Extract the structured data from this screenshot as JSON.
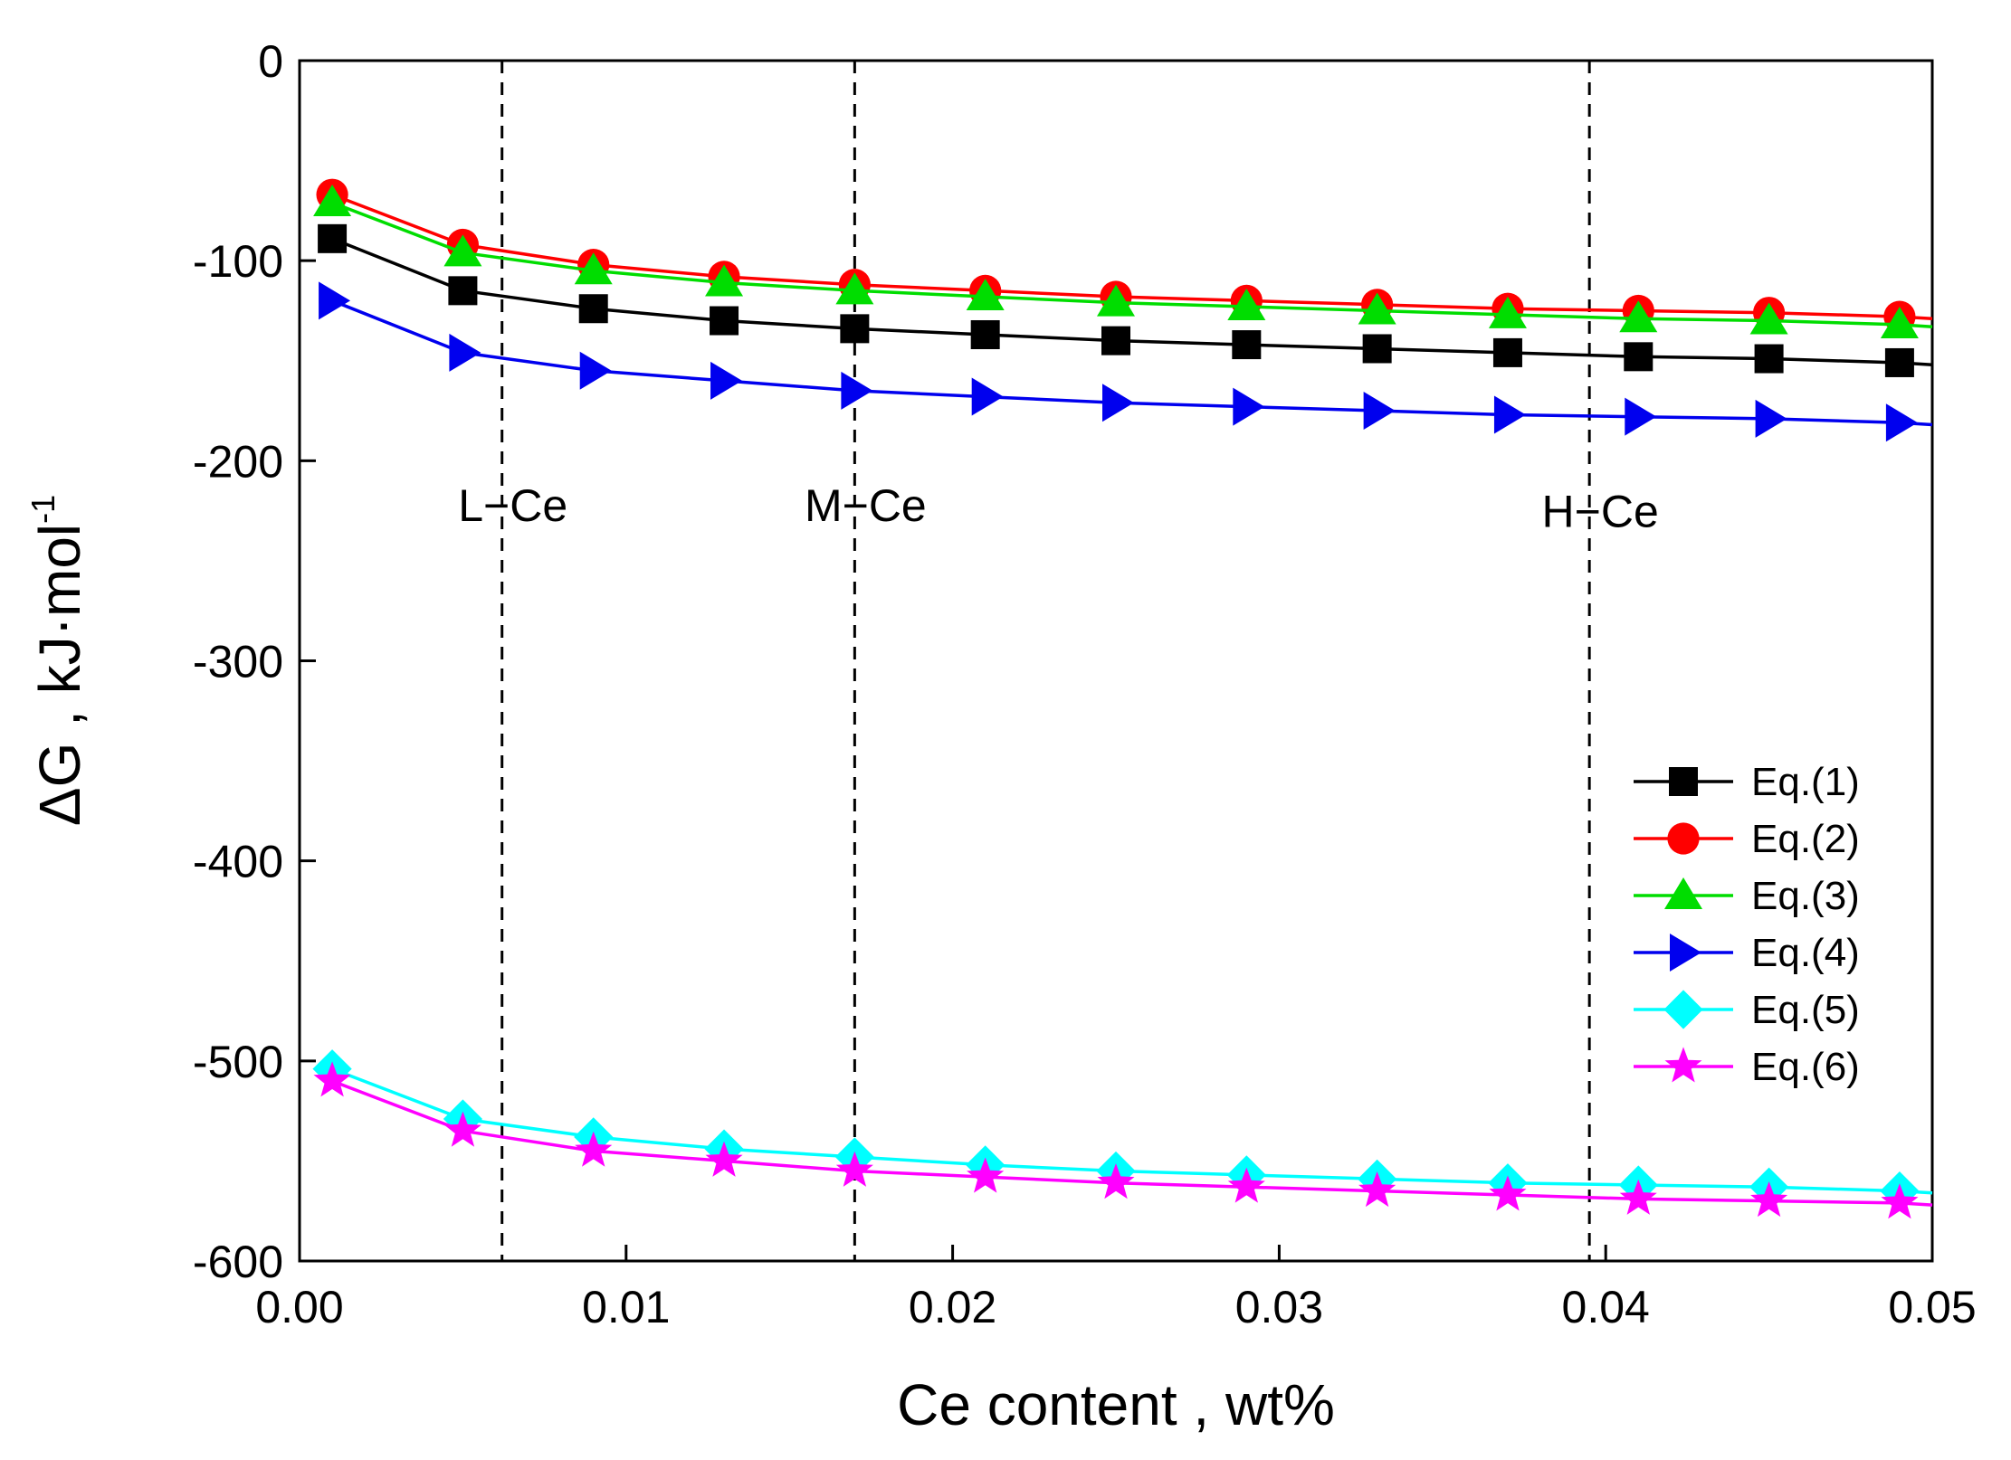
{
  "chart_data": {
    "type": "line",
    "title": "",
    "xlabel": "Ce content , wt%",
    "ylabel_main": "ΔG , kJ·mol",
    "ylabel_sup": "-1",
    "xlim": [
      0.0,
      0.05
    ],
    "ylim": [
      -600,
      0
    ],
    "xticks": [
      0.0,
      0.01,
      0.02,
      0.03,
      0.04,
      0.05
    ],
    "xtick_labels": [
      "0.00",
      "0.01",
      "0.02",
      "0.03",
      "0.04",
      "0.05"
    ],
    "yticks": [
      0,
      -100,
      -200,
      -300,
      -400,
      -500,
      -600
    ],
    "ytick_labels": [
      "0",
      "-100",
      "-200",
      "-300",
      "-400",
      "-500",
      "-600"
    ],
    "grid": false,
    "legend_position": "right",
    "marker_x": [
      0.001,
      0.005,
      0.009,
      0.013,
      0.017,
      0.021,
      0.025,
      0.029,
      0.033,
      0.037,
      0.041,
      0.045,
      0.049
    ],
    "series": [
      {
        "name": "Eq.(1)",
        "color": "#000000",
        "marker": "square",
        "values": [
          -89,
          -115,
          -124,
          -130,
          -134,
          -137,
          -140,
          -142,
          -144,
          -146,
          -148,
          -149,
          -151
        ],
        "end_value": -152
      },
      {
        "name": "Eq.(2)",
        "color": "#ff0000",
        "marker": "circle",
        "values": [
          -67,
          -92,
          -102,
          -108,
          -112,
          -115,
          -118,
          -120,
          -122,
          -124,
          -125,
          -126,
          -128
        ],
        "end_value": -129
      },
      {
        "name": "Eq.(3)",
        "color": "#00dd00",
        "marker": "triangle-up",
        "values": [
          -71,
          -96,
          -105,
          -111,
          -115,
          -118,
          -121,
          -123,
          -125,
          -127,
          -129,
          -130,
          -132
        ],
        "end_value": -133
      },
      {
        "name": "Eq.(4)",
        "color": "#0000ee",
        "marker": "triangle-right",
        "values": [
          -120,
          -146,
          -155,
          -160,
          -165,
          -168,
          -171,
          -173,
          -175,
          -177,
          -178,
          -179,
          -181
        ],
        "end_value": -182
      },
      {
        "name": "Eq.(5)",
        "color": "#00ffff",
        "marker": "diamond",
        "values": [
          -504,
          -529,
          -538,
          -544,
          -548,
          -552,
          -555,
          -557,
          -559,
          -561,
          -562,
          -563,
          -565
        ],
        "end_value": -566
      },
      {
        "name": "Eq.(6)",
        "color": "#ff00ff",
        "marker": "star",
        "values": [
          -510,
          -535,
          -545,
          -550,
          -555,
          -558,
          -561,
          -563,
          -565,
          -567,
          -569,
          -570,
          -571
        ],
        "end_value": -572
      }
    ],
    "vlines": [
      {
        "x": 0.0062,
        "label": "L−Ce",
        "label_y": -222
      },
      {
        "x": 0.017,
        "label": "M−Ce",
        "label_y": -222
      },
      {
        "x": 0.0395,
        "label": "H−Ce",
        "label_y": -225
      }
    ]
  }
}
